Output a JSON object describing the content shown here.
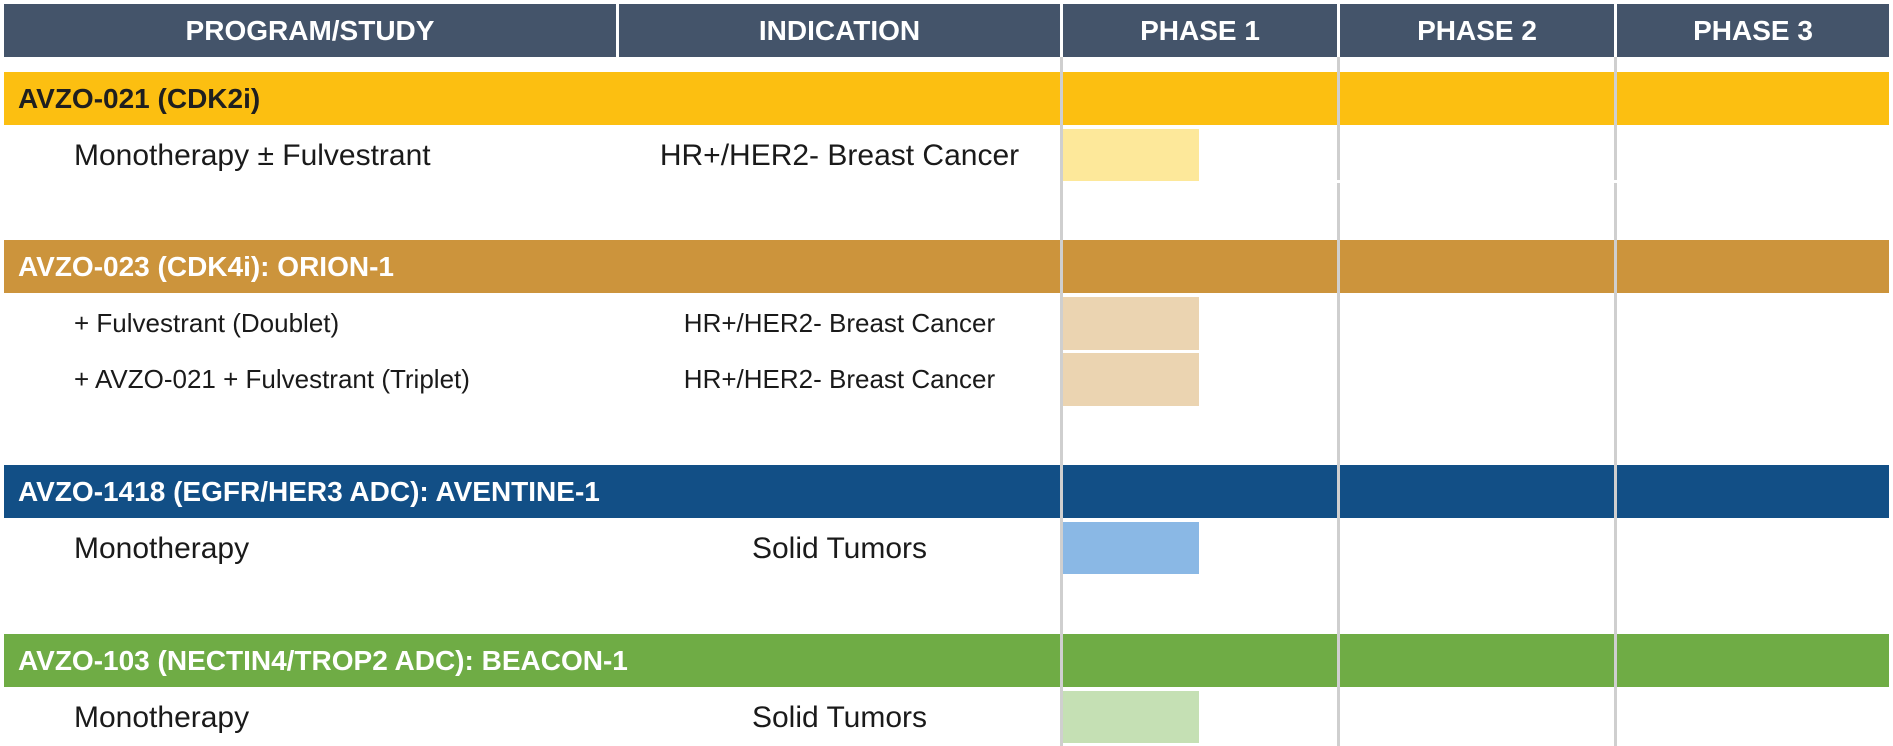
{
  "header": {
    "columns": [
      "PROGRAM/STUDY",
      "INDICATION",
      "PHASE 1",
      "PHASE 2",
      "PHASE 3"
    ],
    "color": "#44546a"
  },
  "programs": [
    {
      "name": "AVZO-021 (CDK2i)",
      "color": "#fcbf11",
      "text_color": "#1f1f1f",
      "studies": [
        {
          "study": "Monotherapy ± Fulvestrant",
          "indication": "HR+/HER2- Breast Cancer",
          "phase": "Phase 1",
          "bar_color": "#fde89a"
        }
      ]
    },
    {
      "name": "AVZO-023 (CDK4i): ORION-1",
      "color": "#cc943c",
      "text_color": "#ffffff",
      "studies": [
        {
          "study": "+ Fulvestrant (Doublet)",
          "indication": "HR+/HER2- Breast Cancer",
          "phase": "Phase 1",
          "bar_color": "#ebd4b1"
        },
        {
          "study": "+ AVZO-021 + Fulvestrant (Triplet)",
          "indication": "HR+/HER2- Breast Cancer",
          "phase": "Phase 1",
          "bar_color": "#ebd4b1"
        }
      ]
    },
    {
      "name": "AVZO-1418 (EGFR/HER3 ADC): AVENTINE-1",
      "color": "#124f86",
      "text_color": "#ffffff",
      "studies": [
        {
          "study": "Monotherapy",
          "indication": "Solid Tumors",
          "phase": "Phase 1",
          "bar_color": "#8ab8e5"
        }
      ]
    },
    {
      "name": "AVZO-103 (NECTIN4/TROP2 ADC): BEACON-1",
      "color": "#6fac45",
      "text_color": "#ffffff",
      "studies": [
        {
          "study": "Monotherapy",
          "indication": "Solid Tumors",
          "phase": "Phase 1",
          "bar_color": "#c5e0b4"
        }
      ]
    }
  ]
}
